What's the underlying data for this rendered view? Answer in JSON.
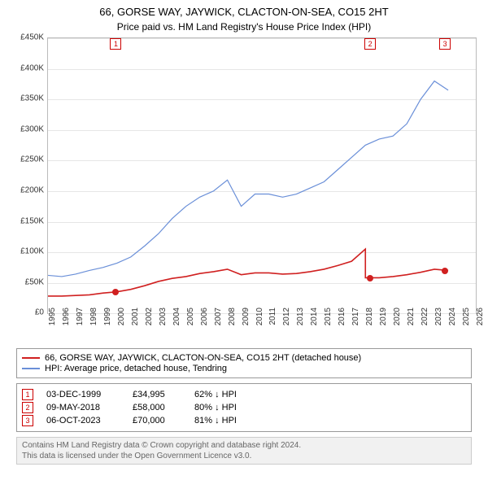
{
  "title": "66, GORSE WAY, JAYWICK, CLACTON-ON-SEA, CO15 2HT",
  "subtitle": "Price paid vs. HM Land Registry's House Price Index (HPI)",
  "chart": {
    "type": "line",
    "ylabel_prefix": "£",
    "ylim": [
      0,
      450000
    ],
    "ytick_step": 50000,
    "ytick_labels": [
      "£0",
      "£50K",
      "£100K",
      "£150K",
      "£200K",
      "£250K",
      "£300K",
      "£350K",
      "£400K",
      "£450K"
    ],
    "x_years": [
      1995,
      1996,
      1997,
      1998,
      1999,
      2000,
      2001,
      2002,
      2003,
      2004,
      2005,
      2006,
      2007,
      2008,
      2009,
      2010,
      2011,
      2012,
      2013,
      2014,
      2015,
      2016,
      2017,
      2018,
      2019,
      2020,
      2021,
      2022,
      2023,
      2024,
      2025,
      2026
    ],
    "grid_color": "#e6e6e6",
    "border_color": "#bbbbbb",
    "series": [
      {
        "name": "hpi",
        "color": "#6a8fd8",
        "width": 1.2,
        "values": [
          62000,
          60000,
          64000,
          70000,
          75000,
          82000,
          92000,
          110000,
          130000,
          155000,
          175000,
          190000,
          200000,
          218000,
          175000,
          195000,
          195000,
          190000,
          195000,
          205000,
          215000,
          235000,
          255000,
          275000,
          285000,
          290000,
          310000,
          350000,
          380000,
          365000
        ]
      },
      {
        "name": "price_paid",
        "color": "#d02020",
        "width": 1.6,
        "values": [
          28000,
          28000,
          29000,
          30000,
          33000,
          34995,
          39000,
          45000,
          52000,
          57000,
          60000,
          65000,
          68000,
          72000,
          63000,
          66000,
          66000,
          64000,
          65000,
          68000,
          72000,
          78000,
          85000,
          105000,
          58000,
          60000,
          63000,
          67000,
          72000,
          70000
        ]
      }
    ],
    "price_jump": {
      "year": 2018,
      "from": 105000,
      "to": 58000
    },
    "transactions": [
      {
        "n": "1",
        "year": 1999.92,
        "value": 34995
      },
      {
        "n": "2",
        "year": 2018.35,
        "value": 58000
      },
      {
        "n": "3",
        "year": 2023.77,
        "value": 70000
      }
    ],
    "marker_point_color": "#d02020"
  },
  "legend": {
    "items": [
      {
        "color": "#d02020",
        "label": "66, GORSE WAY, JAYWICK, CLACTON-ON-SEA, CO15 2HT (detached house)"
      },
      {
        "color": "#6a8fd8",
        "label": "HPI: Average price, detached house, Tendring"
      }
    ]
  },
  "transactions_table": {
    "rows": [
      {
        "n": "1",
        "date": "03-DEC-1999",
        "price": "£34,995",
        "pct": "62% ↓ HPI"
      },
      {
        "n": "2",
        "date": "09-MAY-2018",
        "price": "£58,000",
        "pct": "80% ↓ HPI"
      },
      {
        "n": "3",
        "date": "06-OCT-2023",
        "price": "£70,000",
        "pct": "81% ↓ HPI"
      }
    ]
  },
  "footer": {
    "line1": "Contains HM Land Registry data © Crown copyright and database right 2024.",
    "line2": "This data is licensed under the Open Government Licence v3.0."
  }
}
